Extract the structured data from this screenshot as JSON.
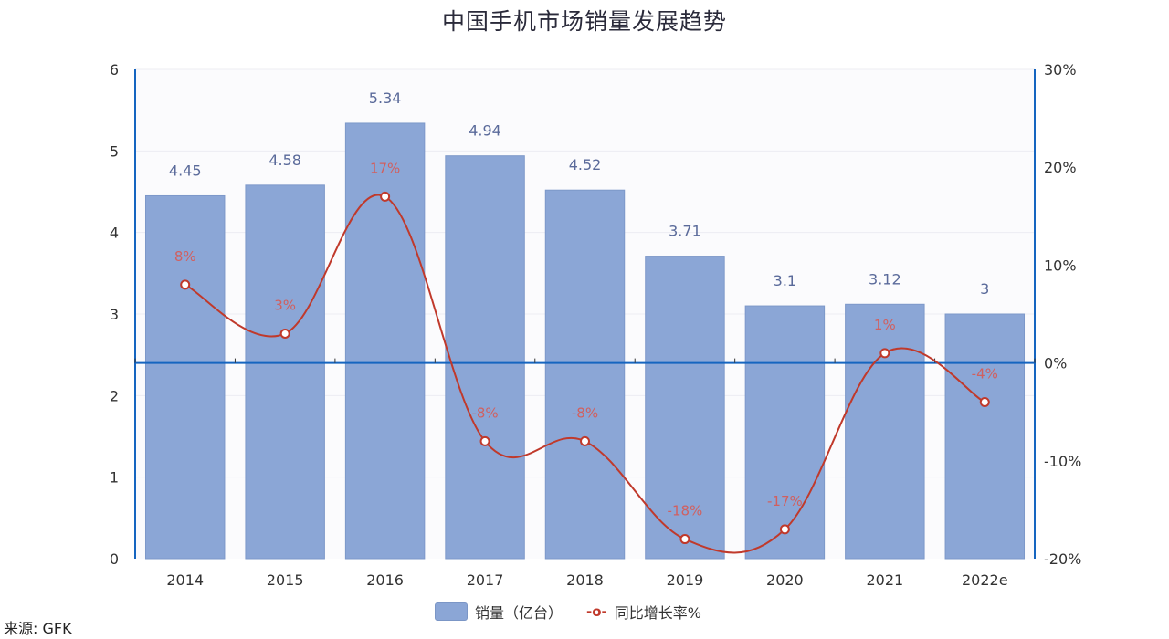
{
  "title": "中国手机市场销量发展趋势",
  "source": "来源: GFK",
  "legend": {
    "bar_label": "销量（亿台）",
    "line_symbol": "-o-",
    "line_label": "同比增长率%"
  },
  "colors": {
    "bar": "#8ba6d6",
    "bar_label": "#5a6a9a",
    "line": "#c0392b",
    "line_label": "#d06060",
    "axis": "#1565c0",
    "grid": "#ececf2"
  },
  "chart_data": {
    "type": "bar+line",
    "title": "中国手机市场销量发展趋势",
    "categories": [
      "2014",
      "2015",
      "2016",
      "2017",
      "2018",
      "2019",
      "2020",
      "2021",
      "2022e"
    ],
    "series": [
      {
        "name": "销量（亿台）",
        "type": "bar",
        "axis": "left",
        "values": [
          4.45,
          4.58,
          5.34,
          4.94,
          4.52,
          3.71,
          3.1,
          3.12,
          3
        ],
        "labels": [
          "4.45",
          "4.58",
          "5.34",
          "4.94",
          "4.52",
          "3.71",
          "3.1",
          "3.12",
          "3"
        ]
      },
      {
        "name": "同比增长率%",
        "type": "line",
        "axis": "right",
        "values": [
          8,
          3,
          17,
          -8,
          -8,
          -18,
          -17,
          1,
          -4
        ],
        "labels": [
          "8%",
          "3%",
          "17%",
          "-8%",
          "-8%",
          "-18%",
          "-17%",
          "1%",
          "-4%"
        ]
      }
    ],
    "left_axis": {
      "ylim": [
        0,
        6
      ],
      "ticks": [
        "0",
        "1",
        "2",
        "3",
        "4",
        "5",
        "6"
      ]
    },
    "right_axis": {
      "ylim": [
        -20,
        30
      ],
      "ticks": [
        "-20%",
        "-10%",
        "0%",
        "10%",
        "20%",
        "30%"
      ]
    },
    "xlabel": "",
    "ylabel": "",
    "grid": true,
    "legend_position": "bottom"
  }
}
